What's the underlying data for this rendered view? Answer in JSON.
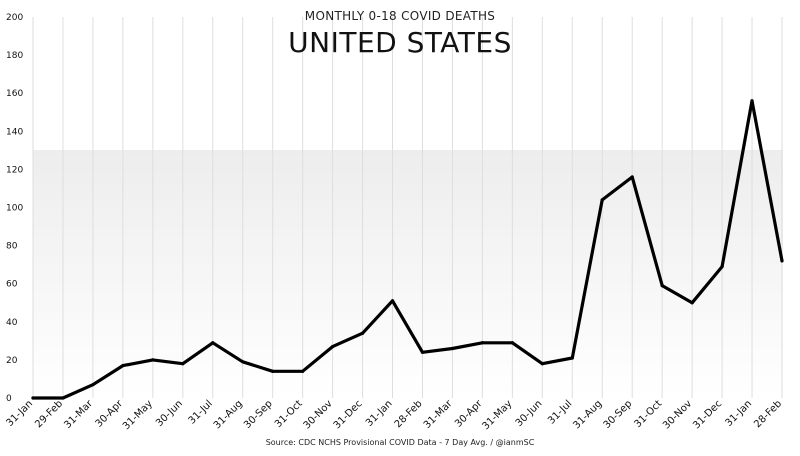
{
  "chart_data": {
    "type": "line",
    "subtitle": "MONTHLY 0-18 COVID DEATHS",
    "title": "UNITED STATES",
    "source": "Source: CDC NCHS Provisional COVID Data - 7 Day Avg. / @ianmSC",
    "categories": [
      "31-Jan",
      "29-Feb",
      "31-Mar",
      "30-Apr",
      "31-May",
      "30-Jun",
      "31-Jul",
      "31-Aug",
      "30-Sep",
      "31-Oct",
      "30-Nov",
      "31-Dec",
      "31-Jan",
      "28-Feb",
      "31-Mar",
      "30-Apr",
      "31-May",
      "30-Jun",
      "31-Jul",
      "31-Aug",
      "30-Sep",
      "31-Oct",
      "30-Nov",
      "31-Dec",
      "31-Jan",
      "28-Feb"
    ],
    "values": [
      0,
      0,
      7,
      17,
      20,
      18,
      29,
      19,
      14,
      14,
      27,
      34,
      51,
      24,
      26,
      29,
      29,
      18,
      21,
      104,
      116,
      59,
      50,
      69,
      156,
      72
    ],
    "ylim": [
      0,
      200
    ],
    "yticks": [
      0,
      20,
      40,
      60,
      80,
      100,
      120,
      140,
      160,
      180,
      200
    ],
    "xlabel": "",
    "ylabel": "",
    "grid": "vertical",
    "colors": {
      "line": "#000000",
      "grid": "#dedede",
      "fill_top": "#ededed",
      "fill_bottom": "#ffffff"
    }
  }
}
